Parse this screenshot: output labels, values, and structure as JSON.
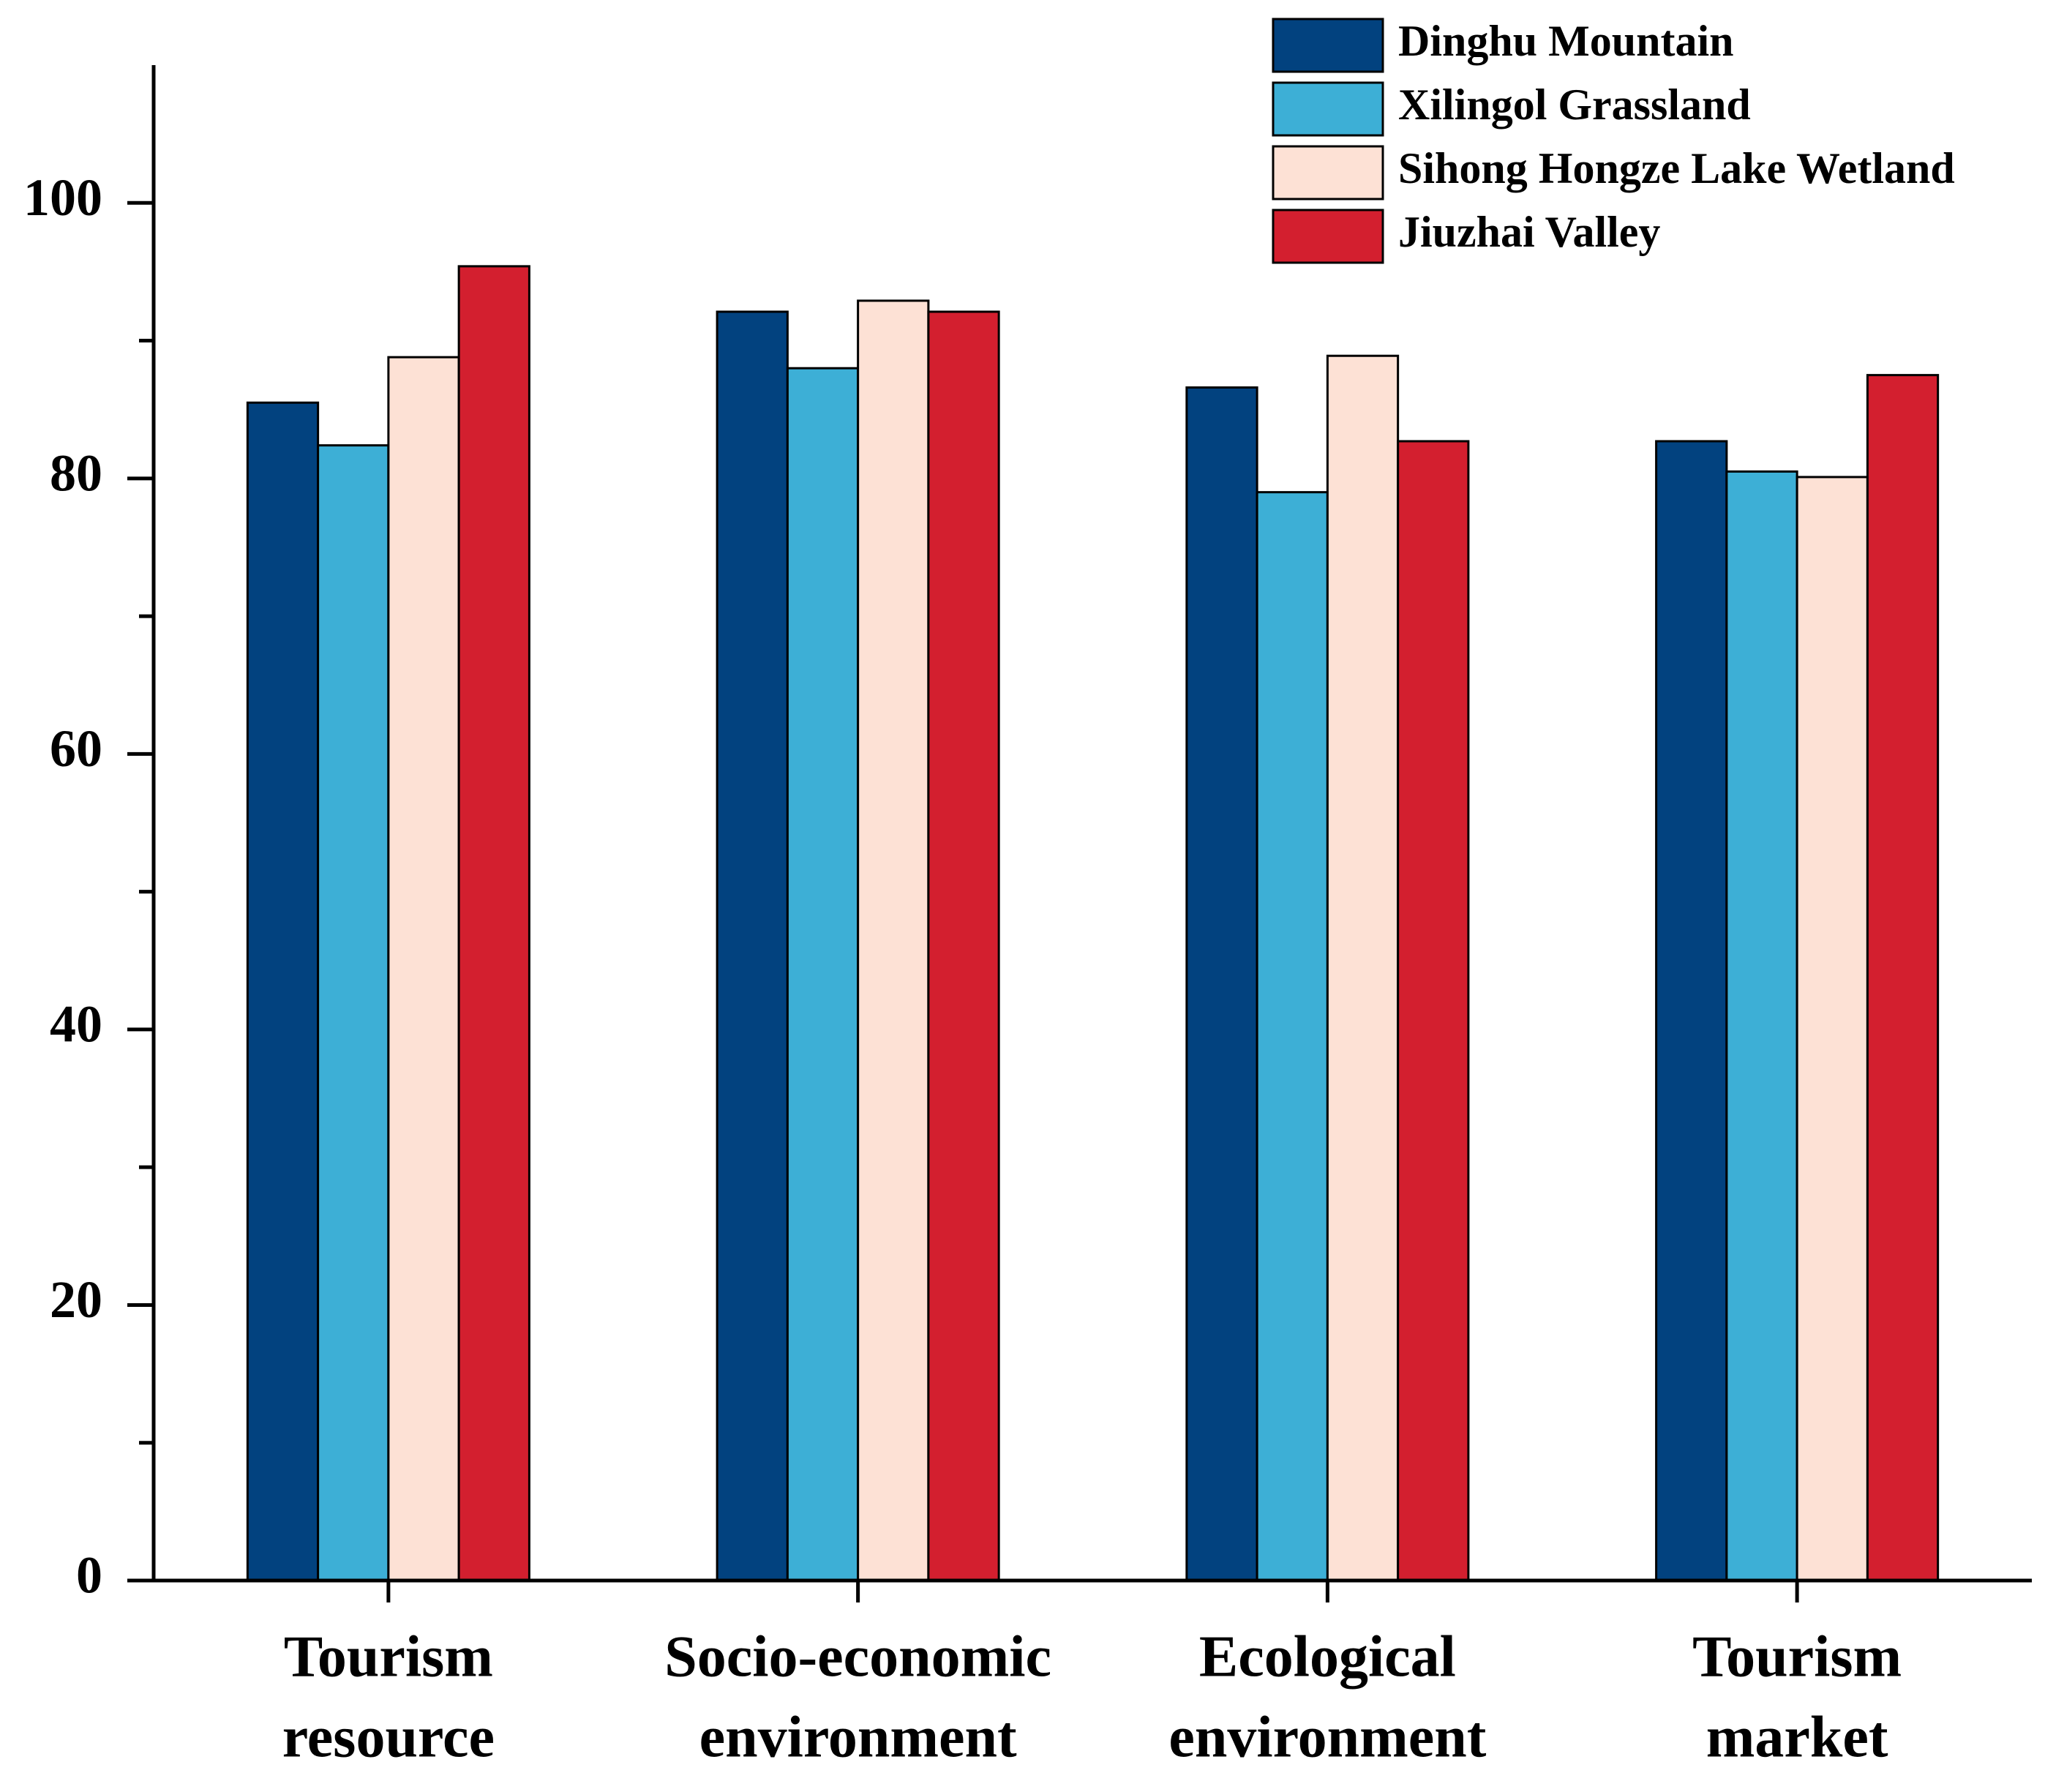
{
  "chart_data": {
    "type": "bar",
    "categories": [
      [
        "Tourism",
        "resource"
      ],
      [
        "Socio-economic",
        "environment"
      ],
      [
        "Ecological",
        "environment"
      ],
      [
        "Tourism",
        "market"
      ]
    ],
    "series": [
      {
        "name": "Dinghu Mountain",
        "color": "#02427f",
        "values": [
          85.5,
          92.1,
          86.6,
          82.7
        ]
      },
      {
        "name": "Xilingol Grassland",
        "color": "#3dafd6",
        "values": [
          82.4,
          88.0,
          79.0,
          80.5
        ]
      },
      {
        "name": "Sihong Hongze Lake Wetland",
        "color": "#fde1d5",
        "values": [
          88.8,
          92.9,
          88.9,
          80.1
        ]
      },
      {
        "name": "Jiuzhai Valley",
        "color": "#d31f2f",
        "values": [
          95.4,
          92.1,
          82.7,
          87.5
        ]
      }
    ],
    "ylim": [
      0,
      110
    ],
    "yticks": [
      0,
      20,
      40,
      60,
      80,
      100
    ],
    "grid": false,
    "legend": "top-right"
  }
}
